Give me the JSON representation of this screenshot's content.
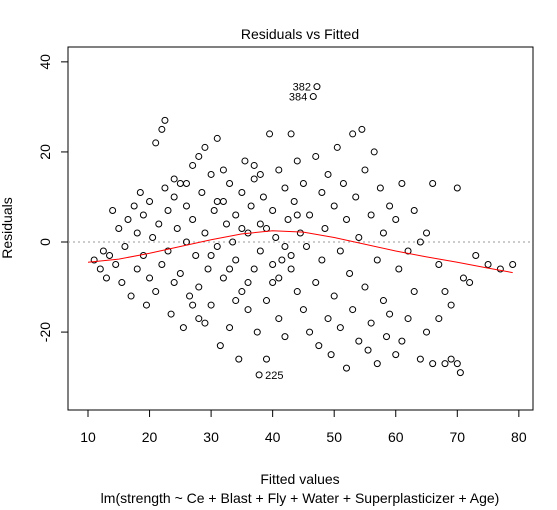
{
  "chart_data": {
    "type": "scatter",
    "title": "Residuals vs Fitted",
    "xlabel": "Fitted values",
    "subtitle": "lm(strength ~ Ce + Blast + Fly + Water + Superplasticizer + Age)",
    "ylabel": "Residuals",
    "xlim": [
      6.75,
      82.3
    ],
    "ylim": [
      -37.3,
      43.3
    ],
    "xticks": [
      10,
      20,
      30,
      40,
      50,
      60,
      70,
      80
    ],
    "yticks": [
      -20,
      0,
      20,
      40
    ],
    "color": "#000000",
    "reference_line": 0,
    "x": [
      11,
      12,
      12.5,
      13,
      13.5,
      14,
      14.5,
      15,
      15.5,
      16,
      16.5,
      17,
      17.5,
      18,
      18,
      18.5,
      19,
      19,
      19.5,
      20,
      20,
      20.5,
      21,
      21,
      21.5,
      22,
      22,
      22.5,
      22.5,
      23,
      23,
      23.5,
      24,
      24,
      24.5,
      25,
      25,
      25.5,
      26,
      26,
      26.5,
      27,
      27,
      27.5,
      28,
      28,
      28.5,
      29,
      29,
      29.5,
      30,
      30,
      30.5,
      31,
      31,
      31.5,
      32,
      32,
      32.5,
      33,
      33,
      33.5,
      34,
      34,
      34.5,
      35,
      35,
      35.5,
      36,
      36,
      36.5,
      37,
      37,
      37.5,
      37.8,
      38,
      38,
      38.5,
      39,
      39,
      39.5,
      40,
      40,
      40.5,
      41,
      41,
      41.5,
      42,
      42,
      42.5,
      43,
      43,
      43.5,
      44,
      44,
      44.5,
      45,
      45,
      45.5,
      46,
      46,
      46.6,
      47.2,
      47,
      47,
      47.5,
      48,
      48,
      48.5,
      49,
      49,
      49.5,
      50,
      50,
      50.5,
      51,
      51,
      51.5,
      52,
      52,
      52.5,
      53,
      53,
      53.5,
      54,
      54,
      54.5,
      55,
      55,
      55.5,
      56,
      56,
      56.5,
      57,
      57,
      57.5,
      58,
      58,
      58.5,
      59,
      59,
      60,
      60,
      60.5,
      61,
      61,
      62,
      62,
      63,
      63,
      64,
      64,
      65,
      65,
      66,
      66,
      67,
      67,
      68,
      68,
      69,
      69,
      70,
      70,
      70.5,
      71,
      72,
      73,
      75,
      77,
      79,
      24,
      26,
      28,
      30,
      32,
      34,
      36,
      38,
      40,
      42,
      44,
      35,
      33,
      29,
      27,
      31,
      37,
      39,
      41,
      43
    ],
    "y": [
      -4,
      -6,
      -2,
      -8,
      -3,
      7,
      -5,
      3,
      -9,
      -1,
      5,
      -12,
      8,
      -6,
      2,
      11,
      -3,
      6,
      -14,
      9,
      -8,
      1,
      22,
      -11,
      4,
      25,
      -5,
      27,
      12,
      -2,
      7,
      -16,
      10,
      -9,
      3,
      13,
      -7,
      -19,
      0,
      8,
      -12,
      17,
      5,
      -3,
      19,
      -10,
      11,
      21,
      2,
      -6,
      15,
      -14,
      7,
      -1,
      23,
      -23,
      9,
      -8,
      4,
      13,
      -19,
      0,
      -4,
      6,
      -26,
      11,
      -11,
      18,
      2,
      -15,
      8,
      -6,
      14,
      -20,
      -29.5,
      4,
      -2,
      10,
      -26,
      -13,
      24,
      7,
      -9,
      1,
      16,
      -17,
      -4,
      12,
      -21,
      5,
      24,
      -6,
      9,
      -11,
      18,
      2,
      -15,
      13,
      -1,
      6,
      -20,
      32.3,
      34.5,
      19,
      -9,
      -23,
      11,
      -4,
      3,
      -17,
      15,
      -25,
      8,
      -12,
      21,
      -2,
      -19,
      13,
      -28,
      5,
      -7,
      24,
      -15,
      10,
      -22,
      1,
      25,
      -10,
      16,
      -24,
      6,
      -18,
      20,
      -4,
      -27,
      12,
      -13,
      2,
      -21,
      8,
      -16,
      -25,
      5,
      -6,
      13,
      -22,
      -2,
      -17,
      7,
      -11,
      -26,
      0,
      -20,
      2,
      -27,
      13,
      -5,
      -17,
      -27,
      -11,
      -26,
      -14,
      -27,
      12,
      -29,
      -8,
      -9,
      -3,
      -5,
      -6,
      -5,
      14,
      13,
      -17,
      -3,
      16,
      -13,
      -9,
      15,
      -5,
      -1,
      6,
      3,
      -6,
      -18,
      -14,
      9,
      17,
      3,
      -8,
      -3
    ],
    "point_labels": [
      {
        "label": "382",
        "x": 47.2,
        "y": 34.5
      },
      {
        "label": "384",
        "x": 46.6,
        "y": 32.3
      },
      {
        "label": "225",
        "x": 37.8,
        "y": -29.5
      }
    ],
    "smooth": {
      "color": "#ff0000",
      "x": [
        10,
        15,
        20,
        25,
        30,
        35,
        40,
        45,
        50,
        55,
        60,
        65,
        70,
        75,
        79
      ],
      "y": [
        -4.5,
        -3.8,
        -2.5,
        -1,
        0.5,
        1.8,
        2.5,
        2.2,
        1,
        -0.5,
        -2,
        -3.3,
        -4.5,
        -5.8,
        -6.8
      ]
    }
  }
}
